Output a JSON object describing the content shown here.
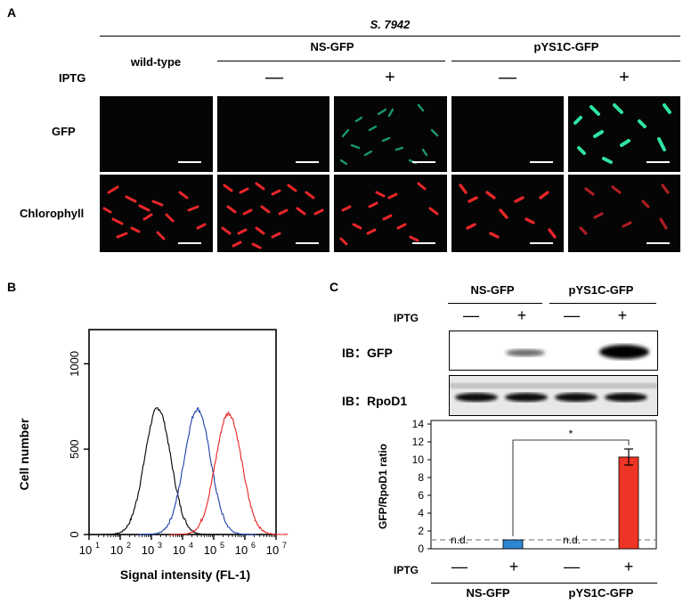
{
  "panelA": {
    "letter": "A",
    "strain": "S. 7942",
    "groups": {
      "wildtype": "wild-type",
      "ns": "NS-GFP",
      "pys": "pYS1C-GFP"
    },
    "iptg_label": "IPTG",
    "minus": "—",
    "plus": "+",
    "rows": {
      "gfp": "GFP",
      "chl": "Chlorophyll"
    }
  },
  "panelB": {
    "letter": "B"
  },
  "panelC": {
    "letter": "C",
    "groups": {
      "ns": "NS-GFP",
      "pys": "pYS1C-GFP"
    },
    "iptg_label": "IPTG",
    "minus": "—",
    "plus": "+",
    "ib_gfp": "IB：GFP",
    "ib_rpod1": "IB：RpoD1",
    "nd": "n.d.",
    "significance": "*"
  },
  "chart_data": [
    {
      "type": "line",
      "xlabel": "Signal intensity (FL-1)",
      "ylabel": "Cell number",
      "x_scale": "log",
      "xlim": [
        10,
        10000000
      ],
      "ylim": [
        0,
        1200
      ],
      "x_ticks": [
        "10",
        "10",
        "10",
        "10",
        "10",
        "10",
        "10"
      ],
      "x_tick_exponents": [
        "1",
        "2",
        "3",
        "4",
        "5",
        "6",
        "7"
      ],
      "y_ticks": [
        "0",
        "500",
        "1000"
      ],
      "series": [
        {
          "color": "#000000",
          "peak_x": 1600,
          "peak_y": 740
        },
        {
          "color": "#1f3fa8",
          "peak_x": 30000,
          "peak_y": 735
        },
        {
          "color": "#e8231f",
          "peak_x": 300000,
          "peak_y": 710
        }
      ]
    },
    {
      "type": "bar",
      "ylabel": "GFP/RpoD1 ratio",
      "ylim": [
        0,
        14
      ],
      "y_ticks": [
        "0",
        "2",
        "4",
        "6",
        "8",
        "10",
        "12",
        "14"
      ],
      "categories": [
        "NS-GFP −",
        "NS-GFP +",
        "pYS1C-GFP −",
        "pYS1C-GFP +"
      ],
      "values": [
        0,
        1.0,
        0,
        10.3
      ],
      "errors": [
        0,
        0,
        0,
        0.9
      ],
      "bar_colors": [
        "#000000",
        "#2d86d0",
        "#000000",
        "#ee3424"
      ],
      "reference_line": 1,
      "grid": false
    }
  ]
}
